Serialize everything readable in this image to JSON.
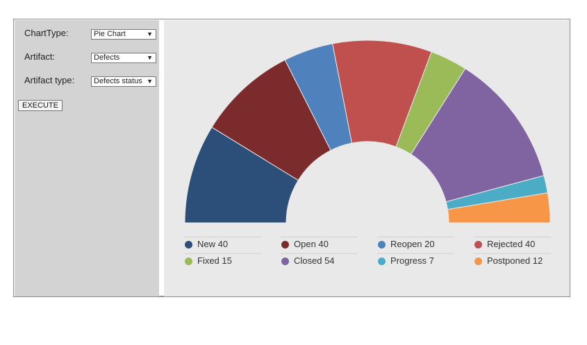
{
  "sidebar": {
    "chart_type": {
      "label": "ChartType:",
      "value": "Pie Chart"
    },
    "artifact": {
      "label": "Artifact:",
      "value": "Defects"
    },
    "artifact_type": {
      "label": "Artifact type:",
      "value": "Defects status"
    },
    "execute_label": "EXECUTE"
  },
  "chart_data": {
    "type": "pie",
    "variant": "half-donut",
    "categories": [
      "New",
      "Open",
      "Reopen",
      "Rejected",
      "Fixed",
      "Closed",
      "Progress",
      "Postponed"
    ],
    "values": [
      40,
      40,
      20,
      40,
      15,
      54,
      7,
      12
    ],
    "colors": [
      "#2c4f7a",
      "#7b2b2b",
      "#4f81bd",
      "#c0504d",
      "#9bbb59",
      "#8064a2",
      "#4bacc6",
      "#f79646"
    ],
    "legend": {
      "placement": "bottom",
      "entries": [
        "New 40",
        "Open 40",
        "Reopen 20",
        "Rejected 40",
        "Fixed 15",
        "Closed 54",
        "Progress 7",
        "Postponed 12"
      ]
    }
  }
}
